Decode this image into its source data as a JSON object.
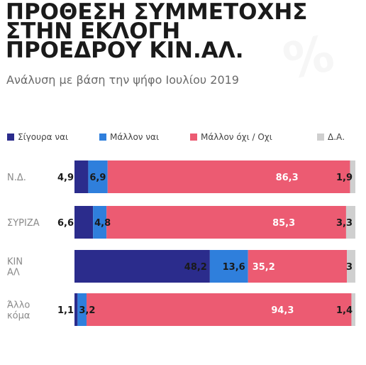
{
  "title_lines": [
    "ΠΡΟΘΕΣΗ ΣΥΜΜΕΤΟΧΗΣ",
    "ΣΤΗΝ ΕΚΛΟΓΗ",
    "ΠΡΟΕΔΡΟΥ ΚΙΝ.ΑΛ."
  ],
  "subtitle": "Ανάλυση με βάση την ψήφο Ιουλίου 2019",
  "watermark": "%",
  "colors": {
    "title": "#1a1a1a",
    "sigoura_nai": "#2b2c8c",
    "mallon_nai": "#2f7fdc",
    "mallon_oxi": "#ec5b72",
    "da": "#cfcfcf",
    "label_dark": "#1a1a1a",
    "label_light": "#ffffff",
    "category": "#8a8a8a"
  },
  "chart_data": {
    "type": "bar",
    "orientation": "horizontal",
    "stacked": true,
    "title": "ΠΡΟΘΕΣΗ ΣΥΜΜΕΤΟΧΗΣ ΣΤΗΝ ΕΚΛΟΓΗ ΠΡΟΕΔΡΟΥ ΚΙΝ.ΑΛ.",
    "subtitle": "Ανάλυση με βάση την ψήφο Ιουλίου 2019",
    "legend_position": "top",
    "grid": false,
    "xlim": [
      0,
      100
    ],
    "categories": [
      "Ν.Δ.",
      "ΣΥΡΙΖΑ",
      "ΚΙΝ ΑΛ",
      "Άλλο κόμα"
    ],
    "category_display": [
      [
        "Ν.Δ."
      ],
      [
        "ΣΥΡΙΖΑ"
      ],
      [
        "ΚΙΝ",
        "ΑΛ"
      ],
      [
        "Άλλο",
        "κόμα"
      ]
    ],
    "series": [
      {
        "name": "Σίγουρα ναι",
        "color_key": "sigoura_nai",
        "values": [
          4.9,
          6.6,
          48.2,
          1.1
        ],
        "labels": [
          "4,9",
          "6,6",
          "48,2",
          "1,1"
        ]
      },
      {
        "name": "Μάλλον ναι",
        "color_key": "mallon_nai",
        "values": [
          6.9,
          4.8,
          13.6,
          3.2
        ],
        "labels": [
          "6,9",
          "4,8",
          "13,6",
          "3,2"
        ]
      },
      {
        "name": "Μάλλον όχι / Οχι",
        "color_key": "mallon_oxi",
        "values": [
          86.3,
          85.3,
          35.2,
          94.3
        ],
        "labels": [
          "86,3",
          "85,3",
          "35,2",
          "94,3"
        ]
      },
      {
        "name": "Δ.Α.",
        "color_key": "da",
        "values": [
          1.9,
          3.3,
          3,
          1.4
        ],
        "labels": [
          "1,9",
          "3,3",
          "3",
          "1,4"
        ]
      }
    ]
  }
}
